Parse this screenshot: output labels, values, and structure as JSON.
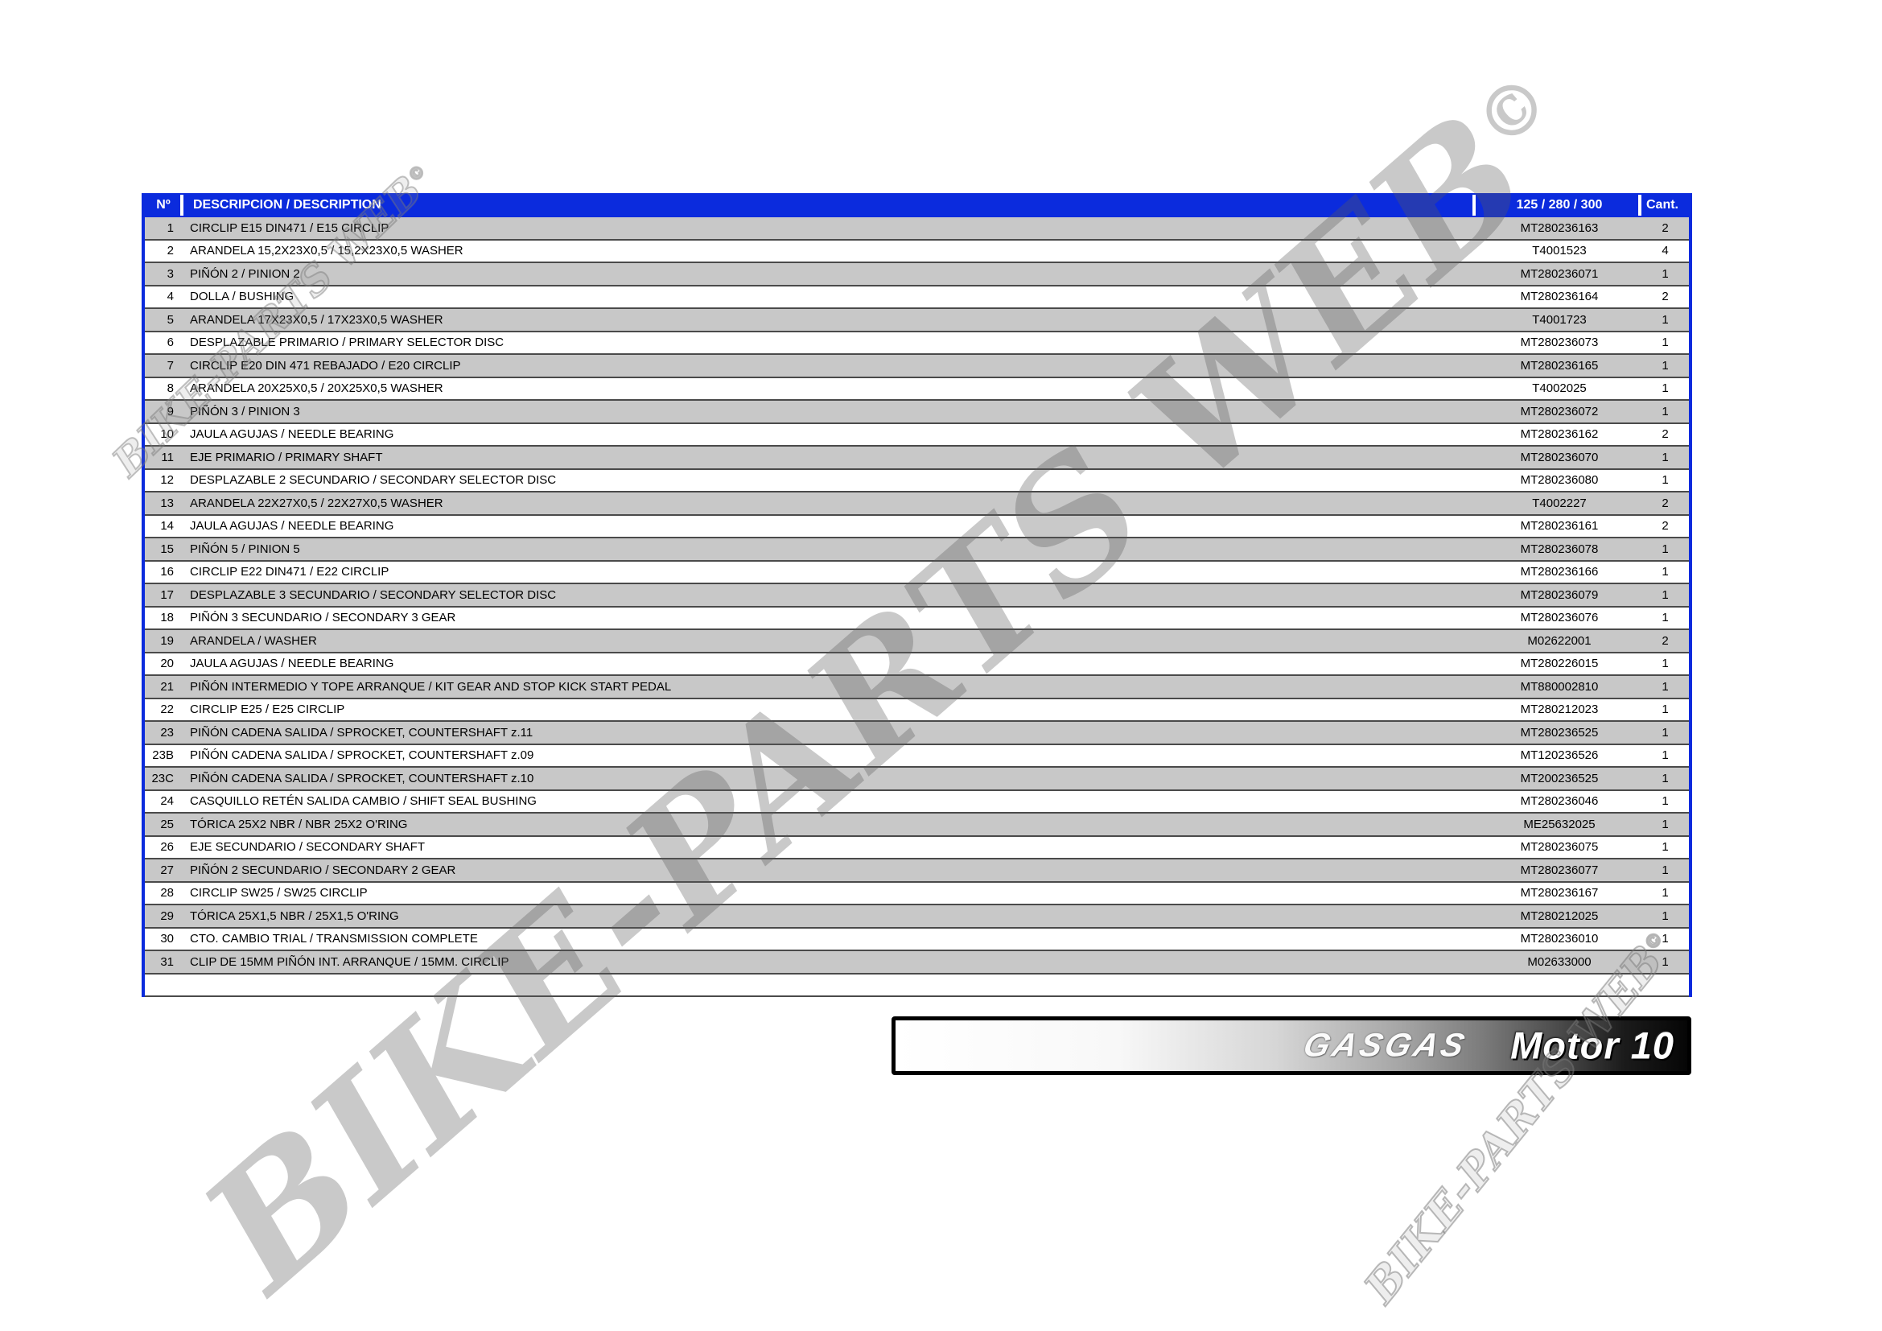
{
  "table": {
    "headers": {
      "num": "Nº",
      "description": "DESCRIPCION / DESCRIPTION",
      "ref": "125 / 280 / 300",
      "qty": "Cant."
    },
    "rows": [
      {
        "num": "1",
        "desc": "CIRCLIP E15 DIN471 / E15 CIRCLIP",
        "ref": "MT280236163",
        "qty": "2"
      },
      {
        "num": "2",
        "desc": "ARANDELA 15,2X23X0,5 / 15,2X23X0,5 WASHER",
        "ref": "T4001523",
        "qty": "4"
      },
      {
        "num": "3",
        "desc": "PIÑÓN 2 / PINION 2",
        "ref": "MT280236071",
        "qty": "1"
      },
      {
        "num": "4",
        "desc": "DOLLA / BUSHING",
        "ref": "MT280236164",
        "qty": "2"
      },
      {
        "num": "5",
        "desc": "ARANDELA 17X23X0,5 / 17X23X0,5 WASHER",
        "ref": "T4001723",
        "qty": "1"
      },
      {
        "num": "6",
        "desc": "DESPLAZABLE PRIMARIO / PRIMARY SELECTOR DISC",
        "ref": "MT280236073",
        "qty": "1"
      },
      {
        "num": "7",
        "desc": "CIRCLIP E20 DIN 471 REBAJADO / E20 CIRCLIP",
        "ref": "MT280236165",
        "qty": "1"
      },
      {
        "num": "8",
        "desc": "ARANDELA 20X25X0,5 / 20X25X0,5 WASHER",
        "ref": "T4002025",
        "qty": "1"
      },
      {
        "num": "9",
        "desc": "PIÑÓN 3 / PINION 3",
        "ref": "MT280236072",
        "qty": "1"
      },
      {
        "num": "10",
        "desc": "JAULA AGUJAS / NEEDLE BEARING",
        "ref": "MT280236162",
        "qty": "2"
      },
      {
        "num": "11",
        "desc": "EJE PRIMARIO / PRIMARY SHAFT",
        "ref": "MT280236070",
        "qty": "1"
      },
      {
        "num": "12",
        "desc": "DESPLAZABLE 2 SECUNDARIO / SECONDARY SELECTOR DISC",
        "ref": "MT280236080",
        "qty": "1"
      },
      {
        "num": "13",
        "desc": "ARANDELA 22X27X0,5 / 22X27X0,5 WASHER",
        "ref": "T4002227",
        "qty": "2"
      },
      {
        "num": "14",
        "desc": "JAULA AGUJAS / NEEDLE BEARING",
        "ref": "MT280236161",
        "qty": "2"
      },
      {
        "num": "15",
        "desc": "PIÑÓN 5 / PINION 5",
        "ref": "MT280236078",
        "qty": "1"
      },
      {
        "num": "16",
        "desc": "CIRCLIP E22 DIN471 / E22 CIRCLIP",
        "ref": "MT280236166",
        "qty": "1"
      },
      {
        "num": "17",
        "desc": "DESPLAZABLE 3 SECUNDARIO / SECONDARY SELECTOR DISC",
        "ref": "MT280236079",
        "qty": "1"
      },
      {
        "num": "18",
        "desc": "PIÑÓN 3 SECUNDARIO / SECONDARY 3 GEAR",
        "ref": "MT280236076",
        "qty": "1"
      },
      {
        "num": "19",
        "desc": "ARANDELA / WASHER",
        "ref": "M02622001",
        "qty": "2"
      },
      {
        "num": "20",
        "desc": "JAULA AGUJAS / NEEDLE BEARING",
        "ref": "MT280226015",
        "qty": "1"
      },
      {
        "num": "21",
        "desc": "PIÑÓN INTERMEDIO Y TOPE ARRANQUE / KIT GEAR AND STOP KICK START PEDAL",
        "ref": "MT880002810",
        "qty": "1"
      },
      {
        "num": "22",
        "desc": "CIRCLIP E25 / E25 CIRCLIP",
        "ref": "MT280212023",
        "qty": "1"
      },
      {
        "num": "23",
        "desc": "PIÑÓN CADENA SALIDA / SPROCKET, COUNTERSHAFT  z.11",
        "ref": "MT280236525",
        "qty": "1"
      },
      {
        "num": "23B",
        "desc": "PIÑÓN CADENA SALIDA / SPROCKET, COUNTERSHAFT  z.09",
        "ref": "MT120236526",
        "qty": "1"
      },
      {
        "num": "23C",
        "desc": "PIÑÓN CADENA SALIDA / SPROCKET, COUNTERSHAFT  z.10",
        "ref": "MT200236525",
        "qty": "1"
      },
      {
        "num": "24",
        "desc": "CASQUILLO RETÉN SALIDA CAMBIO / SHIFT SEAL BUSHING",
        "ref": "MT280236046",
        "qty": "1"
      },
      {
        "num": "25",
        "desc": "TÓRICA 25X2 NBR / NBR 25X2 O'RING",
        "ref": "ME25632025",
        "qty": "1"
      },
      {
        "num": "26",
        "desc": "EJE SECUNDARIO / SECONDARY SHAFT",
        "ref": "MT280236075",
        "qty": "1"
      },
      {
        "num": "27",
        "desc": "PIÑÓN 2 SECUNDARIO / SECONDARY 2 GEAR",
        "ref": "MT280236077",
        "qty": "1"
      },
      {
        "num": "28",
        "desc": "CIRCLIP SW25 / SW25 CIRCLIP",
        "ref": "MT280236167",
        "qty": "1"
      },
      {
        "num": "29",
        "desc": "TÓRICA 25X1,5 NBR / 25X1,5 O'RING",
        "ref": "MT280212025",
        "qty": "1"
      },
      {
        "num": "30",
        "desc": "CTO. CAMBIO TRIAL / TRANSMISSION COMPLETE",
        "ref": "MT280236010",
        "qty": "1"
      },
      {
        "num": "31",
        "desc": "CLIP DE 15MM PIÑÓN INT. ARRANQUE / 15MM. CIRCLIP",
        "ref": "M02633000",
        "qty": "1"
      },
      {
        "num": "",
        "desc": "",
        "ref": "",
        "qty": ""
      }
    ]
  },
  "footer": {
    "brand": "GASGAS",
    "model": "Motor 10"
  },
  "watermark": {
    "text": "BIKE-PARTS WEB",
    "symbol": "©"
  },
  "colors": {
    "header_bg": "#0b2bdd",
    "row_alt": "#c8c8c8",
    "row_line": "#4a4a4a",
    "border_blue": "#0b2bdd"
  }
}
